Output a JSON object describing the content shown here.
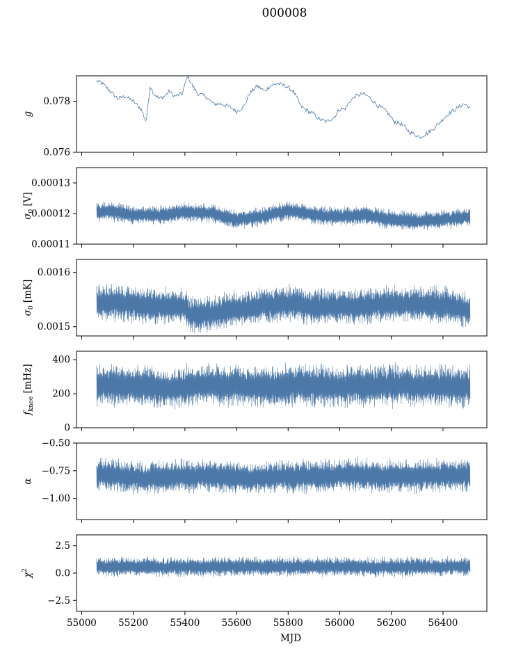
{
  "figure": {
    "title": "000008",
    "x_label": "MJD",
    "line_color": "#4c78a8"
  },
  "chart_data": [
    {
      "type": "line",
      "ylabel": "g",
      "xlim": [
        54980,
        56570
      ],
      "ylim": [
        0.076,
        0.079
      ],
      "yticks": [
        {
          "v": 0.076,
          "label": "0.076"
        },
        {
          "v": 0.078,
          "label": "0.078"
        }
      ],
      "xticks": [
        55000,
        55200,
        55400,
        55600,
        55800,
        56000,
        56200,
        56400
      ],
      "show_xtick_labels": false,
      "series": [
        {
          "x": [
            55058,
            55080,
            55110,
            55140,
            55170,
            55200,
            55230,
            55250,
            55265,
            55280,
            55300,
            55320,
            55340,
            55360,
            55390,
            55410,
            55430,
            55450,
            55480,
            55510,
            55540,
            55570,
            55600,
            55630,
            55650,
            55680,
            55710,
            55730,
            55760,
            55790,
            55820,
            55850,
            55880,
            55900,
            55920,
            55950,
            55980,
            56000,
            56020,
            56040,
            56060,
            56090,
            56110,
            56130,
            56150,
            56170,
            56190,
            56210,
            56240,
            56270,
            56290,
            56310,
            56330,
            56360,
            56390,
            56420,
            56450,
            56480,
            56500,
            56505
          ],
          "y": [
            0.0788,
            0.0787,
            0.0784,
            0.0781,
            0.0782,
            0.078,
            0.0777,
            0.0772,
            0.0786,
            0.0783,
            0.0781,
            0.0782,
            0.0784,
            0.0782,
            0.0783,
            0.079,
            0.0786,
            0.0783,
            0.0782,
            0.0779,
            0.0779,
            0.0778,
            0.0776,
            0.0778,
            0.0783,
            0.0786,
            0.0784,
            0.0786,
            0.0787,
            0.0786,
            0.0784,
            0.0778,
            0.0776,
            0.0775,
            0.0773,
            0.0772,
            0.0774,
            0.0777,
            0.0777,
            0.078,
            0.0782,
            0.0783,
            0.0782,
            0.078,
            0.0778,
            0.0777,
            0.0775,
            0.0772,
            0.0771,
            0.0768,
            0.0767,
            0.0766,
            0.0767,
            0.0769,
            0.0772,
            0.0775,
            0.0777,
            0.0779,
            0.0778,
            0.0777
          ]
        }
      ],
      "noise": 8e-05,
      "fill": false
    },
    {
      "type": "line",
      "ylabel": "σ0 [V]",
      "xlim": [
        54980,
        56570
      ],
      "ylim": [
        0.00011,
        0.000135
      ],
      "yticks": [
        {
          "v": 0.00011,
          "label": "0.00011"
        },
        {
          "v": 0.00012,
          "label": "0.00012"
        },
        {
          "v": 0.00013,
          "label": "0.00013"
        }
      ],
      "xticks": [
        55000,
        55200,
        55400,
        55600,
        55800,
        56000,
        56200,
        56400
      ],
      "show_xtick_labels": false,
      "series": [
        {
          "x": [
            55058,
            55100,
            55200,
            55300,
            55400,
            55500,
            55600,
            55700,
            55800,
            55900,
            56000,
            56100,
            56200,
            56300,
            56400,
            56505
          ],
          "y": [
            0.0001205,
            0.000121,
            0.0001195,
            0.0001195,
            0.0001205,
            0.00012,
            0.000118,
            0.000119,
            0.000121,
            0.0001195,
            0.000119,
            0.0001195,
            0.000118,
            0.0001175,
            0.000118,
            0.000119
          ]
        }
      ],
      "band": 3.5e-06,
      "fill": true
    },
    {
      "type": "line",
      "ylabel": "σ0 [mK]",
      "xlim": [
        54980,
        56570
      ],
      "ylim": [
        0.001483,
        0.001624
      ],
      "yticks": [
        {
          "v": 0.0015,
          "label": "0.0015"
        },
        {
          "v": 0.0016,
          "label": "0.0016"
        }
      ],
      "xticks": [
        55000,
        55200,
        55400,
        55600,
        55800,
        56000,
        56200,
        56400
      ],
      "show_xtick_labels": false,
      "series": [
        {
          "x": [
            55058,
            55100,
            55200,
            55300,
            55400,
            55420,
            55500,
            55600,
            55700,
            55800,
            55900,
            56000,
            56100,
            56200,
            56300,
            56400,
            56505
          ],
          "y": [
            0.001543,
            0.001545,
            0.001542,
            0.001538,
            0.001538,
            0.001522,
            0.001523,
            0.001532,
            0.001538,
            0.001544,
            0.001537,
            0.001537,
            0.001538,
            0.001543,
            0.001541,
            0.00154,
            0.00153
          ]
        }
      ],
      "band": 3.8e-05,
      "fill": true
    },
    {
      "type": "line",
      "ylabel": "fknee [mHz]",
      "xlim": [
        54980,
        56570
      ],
      "ylim": [
        0,
        450
      ],
      "yticks": [
        {
          "v": 0,
          "label": "0"
        },
        {
          "v": 200,
          "label": "200"
        },
        {
          "v": 400,
          "label": "400"
        }
      ],
      "xticks": [
        55000,
        55200,
        55400,
        55600,
        55800,
        56000,
        56200,
        56400
      ],
      "show_xtick_labels": false,
      "series": [
        {
          "x": [
            55058,
            55150,
            55250,
            55350,
            55450,
            55550,
            55650,
            55750,
            55850,
            55950,
            56050,
            56150,
            56250,
            56350,
            56450,
            56505
          ],
          "y": [
            245,
            250,
            240,
            230,
            255,
            250,
            245,
            240,
            250,
            245,
            250,
            245,
            250,
            245,
            248,
            245
          ]
        }
      ],
      "band": 140,
      "fill": true
    },
    {
      "type": "line",
      "ylabel": "α",
      "xlim": [
        54980,
        56570
      ],
      "ylim": [
        -1.19,
        -0.5
      ],
      "yticks": [
        {
          "v": -1.0,
          "label": "−1.00"
        },
        {
          "v": -0.75,
          "label": "−0.75"
        },
        {
          "v": -0.5,
          "label": "−0.50"
        }
      ],
      "xticks": [
        55000,
        55200,
        55400,
        55600,
        55800,
        56000,
        56200,
        56400
      ],
      "show_xtick_labels": false,
      "series": [
        {
          "x": [
            55058,
            55150,
            55250,
            55350,
            55450,
            55550,
            55650,
            55750,
            55850,
            55950,
            56050,
            56150,
            56250,
            56350,
            56450,
            56505
          ],
          "y": [
            -0.78,
            -0.8,
            -0.82,
            -0.8,
            -0.8,
            -0.8,
            -0.82,
            -0.8,
            -0.8,
            -0.8,
            -0.78,
            -0.8,
            -0.8,
            -0.8,
            -0.79,
            -0.8
          ]
        }
      ],
      "band": 0.17,
      "fill": true
    },
    {
      "type": "line",
      "ylabel": "χ2",
      "xlim": [
        54980,
        56570
      ],
      "ylim": [
        -3.5,
        3.5
      ],
      "yticks": [
        {
          "v": -2.5,
          "label": "−2.5"
        },
        {
          "v": 0.0,
          "label": "0.0"
        },
        {
          "v": 2.5,
          "label": "2.5"
        }
      ],
      "xticks": [
        55000,
        55200,
        55400,
        55600,
        55800,
        56000,
        56200,
        56400
      ],
      "show_xtick_labels": true,
      "series": [
        {
          "x": [
            55058,
            55300,
            55600,
            55900,
            56200,
            56505
          ],
          "y": [
            0.6,
            0.55,
            0.6,
            0.6,
            0.55,
            0.6
          ]
        }
      ],
      "band": 1.0,
      "fill": true
    }
  ]
}
